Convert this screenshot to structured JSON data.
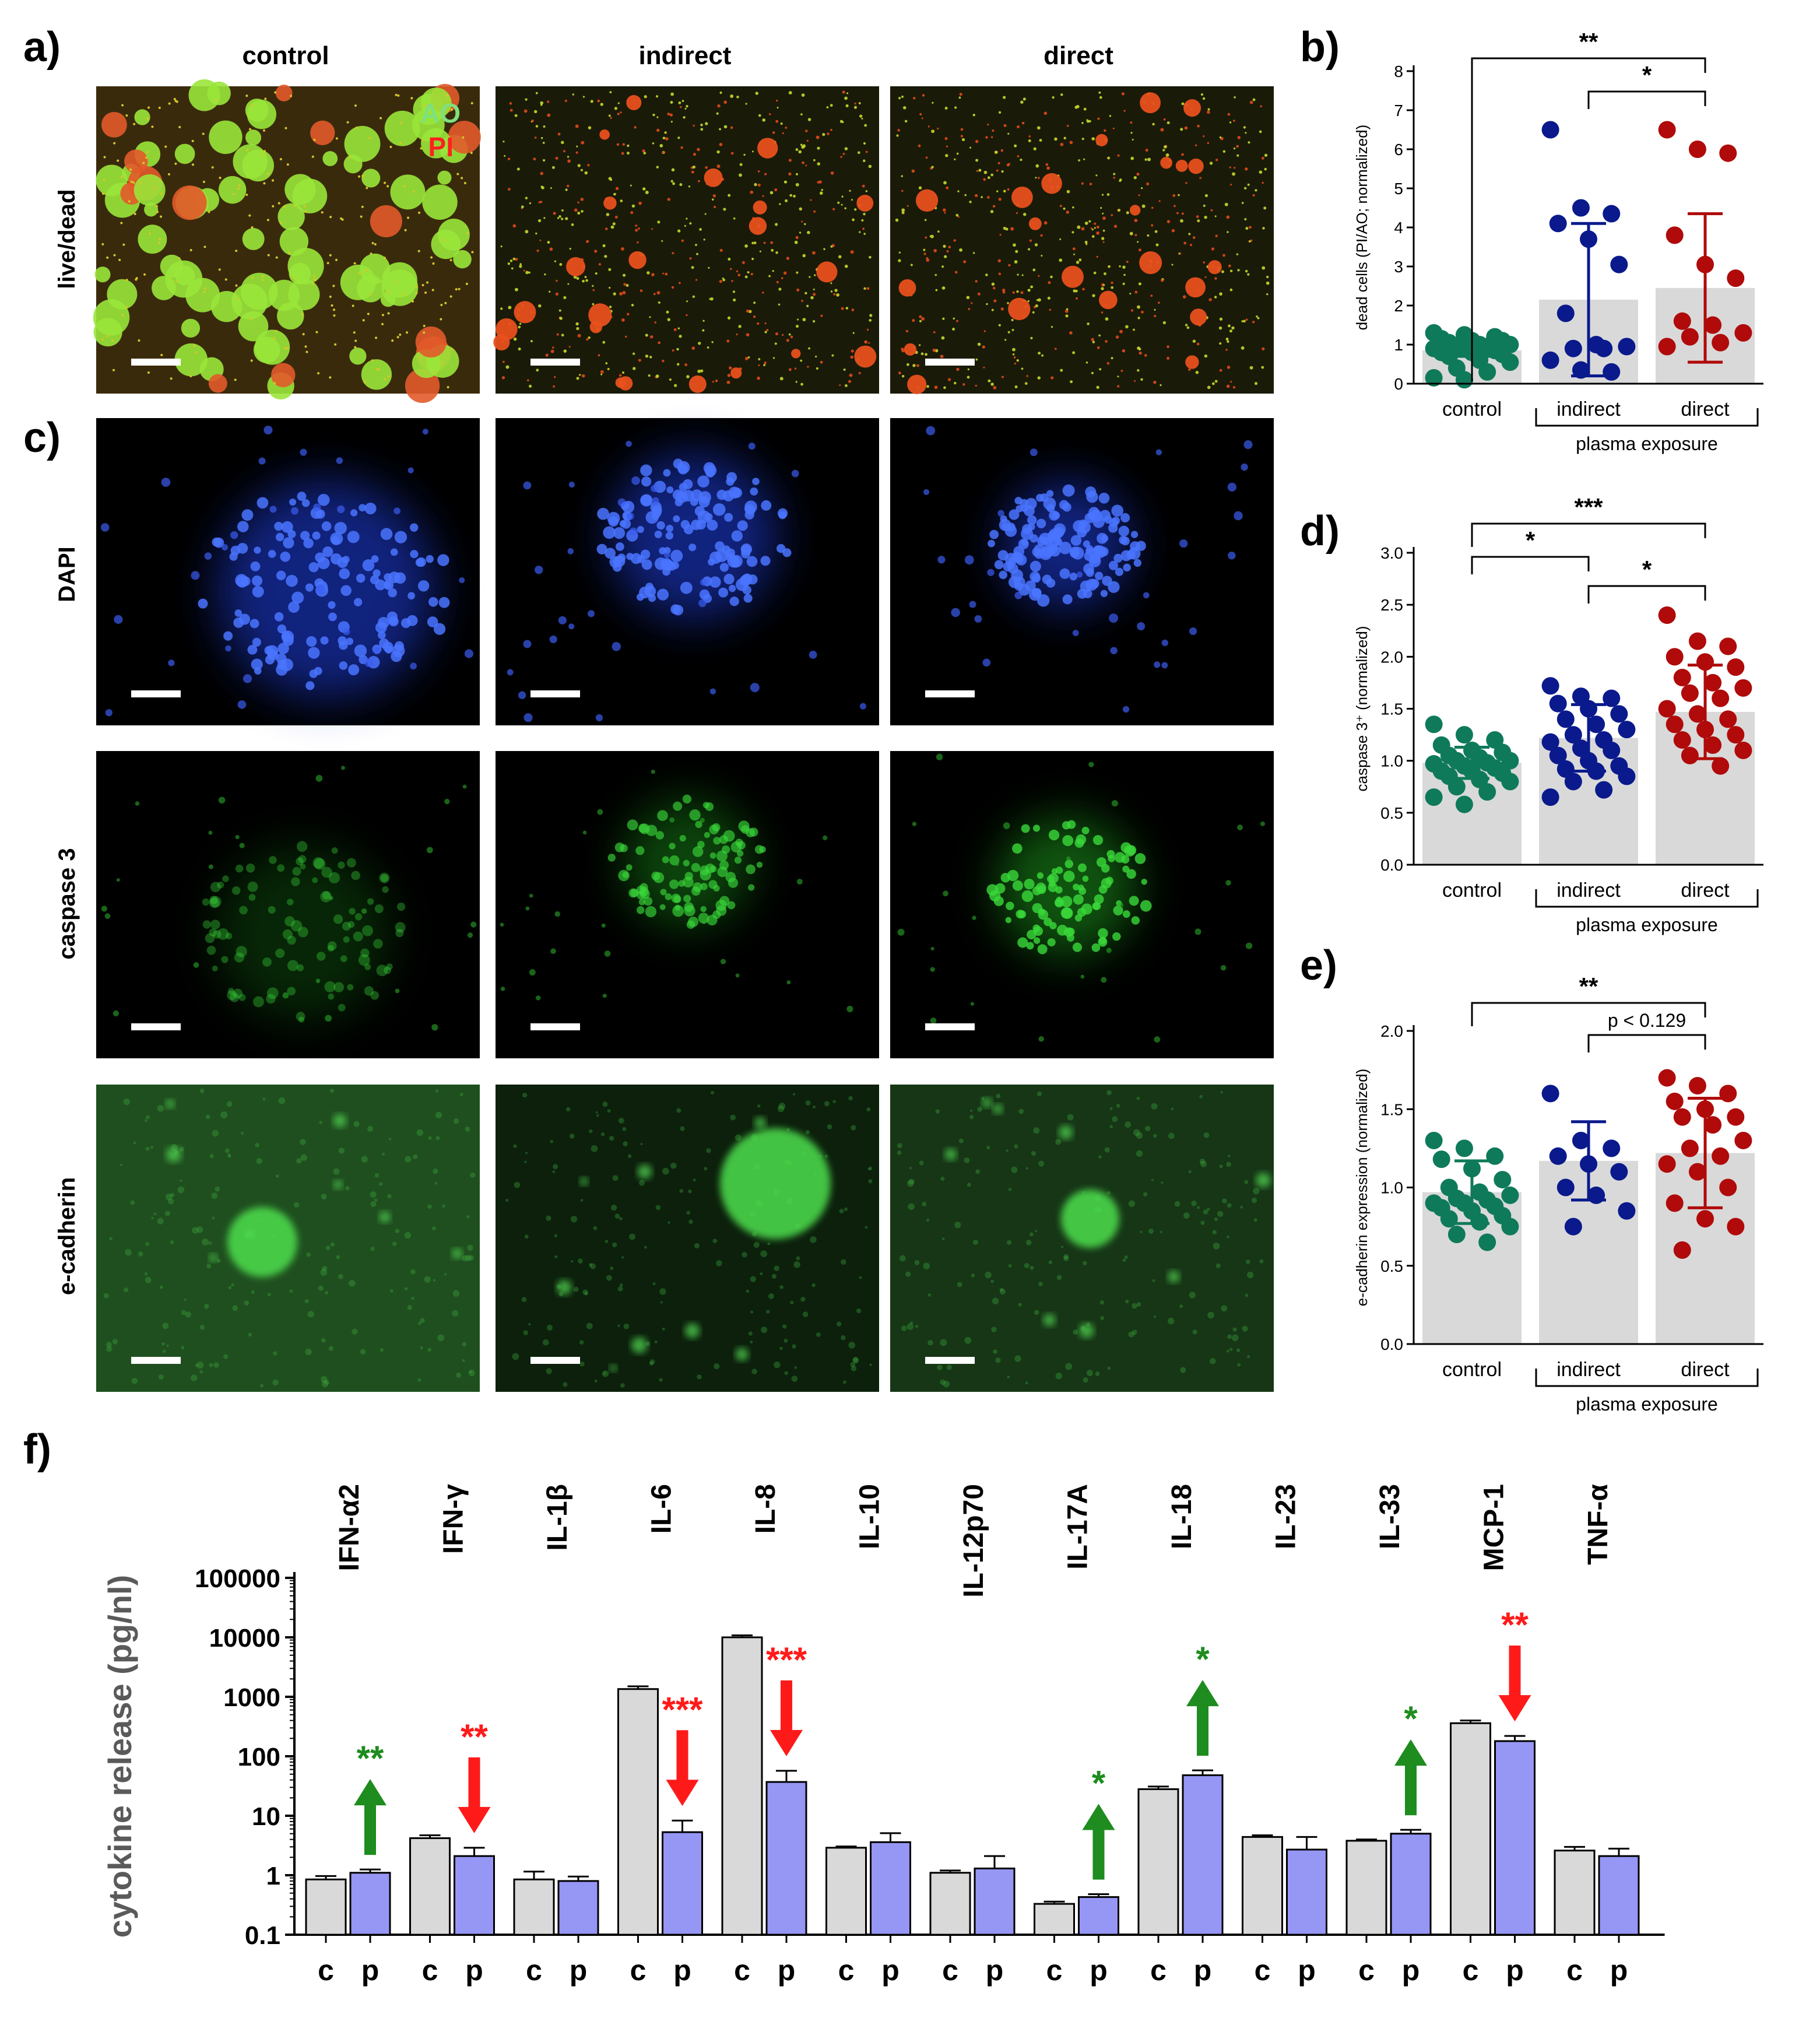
{
  "panel_labels": {
    "a": "a)",
    "b": "b)",
    "c": "c)",
    "d": "d)",
    "e": "e)",
    "f": "f)"
  },
  "column_headers": [
    "control",
    "indirect",
    "direct"
  ],
  "row_labels": [
    "live/dead",
    "DAPI",
    "caspase 3",
    "e-cadherin"
  ],
  "stain_labels": {
    "ao": "AO",
    "pi": "PI"
  },
  "colors": {
    "control": "#0f7a5a",
    "indirect": "#0a1a8c",
    "direct": "#b00a0a",
    "bar": "#d9d9d9",
    "blue_bar": "#9696f5",
    "red_mark": "#ff1a1a",
    "green_mark": "#1e8c1e"
  },
  "chart_data": [
    {
      "id": "b",
      "type": "bar-scatter",
      "ylabel": "dead cells (PI/AO; normalized)",
      "ylim": [
        0,
        8
      ],
      "yticks": [
        0,
        1,
        2,
        3,
        4,
        5,
        6,
        7,
        8
      ],
      "categories": [
        "control",
        "indirect",
        "direct"
      ],
      "group_label": "plasma exposure",
      "means": [
        0.85,
        2.15,
        2.45
      ],
      "sd": [
        0.15,
        1.95,
        1.9
      ],
      "points": [
        [
          1.3,
          1.25,
          1.2,
          1.15,
          1.1,
          1.1,
          1.05,
          1.0,
          1.0,
          0.95,
          0.95,
          0.9,
          0.9,
          0.85,
          0.8,
          0.8,
          0.75,
          0.7,
          0.6,
          0.55,
          0.4,
          0.3,
          0.15,
          0.1
        ],
        [
          6.5,
          4.5,
          4.35,
          4.1,
          3.7,
          3.05,
          1.8,
          1.0,
          0.95,
          0.9,
          0.9,
          0.6,
          0.35,
          0.3
        ],
        [
          6.5,
          6.0,
          5.9,
          3.8,
          3.05,
          2.7,
          1.6,
          1.5,
          1.3,
          1.2,
          1.05,
          0.95
        ]
      ],
      "significance": [
        {
          "from": 0,
          "to": 2,
          "label": "**"
        },
        {
          "from": 1,
          "to": 2,
          "label": "*"
        }
      ]
    },
    {
      "id": "d",
      "type": "bar-scatter",
      "ylabel": "caspase 3⁺ (normalized)",
      "ylim": [
        0,
        3
      ],
      "yticks": [
        "0.0",
        "0.5",
        "1.0",
        "1.5",
        "2.0",
        "2.5",
        "3.0"
      ],
      "categories": [
        "control",
        "indirect",
        "direct"
      ],
      "group_label": "plasma exposure",
      "means": [
        0.98,
        1.22,
        1.47
      ],
      "sd": [
        0.15,
        0.32,
        0.45
      ],
      "points": [
        [
          1.35,
          1.25,
          1.2,
          1.15,
          1.1,
          1.08,
          1.05,
          1.03,
          1.0,
          1.0,
          0.98,
          0.97,
          0.95,
          0.93,
          0.9,
          0.9,
          0.88,
          0.85,
          0.82,
          0.8,
          0.75,
          0.7,
          0.65,
          0.58
        ],
        [
          1.72,
          1.62,
          1.6,
          1.55,
          1.5,
          1.45,
          1.4,
          1.35,
          1.3,
          1.25,
          1.2,
          1.18,
          1.12,
          1.1,
          1.05,
          1.0,
          0.95,
          0.92,
          0.9,
          0.85,
          0.8,
          0.72,
          0.65
        ],
        [
          2.4,
          2.15,
          2.1,
          2.0,
          1.95,
          1.9,
          1.8,
          1.75,
          1.7,
          1.65,
          1.6,
          1.5,
          1.45,
          1.4,
          1.35,
          1.3,
          1.25,
          1.2,
          1.15,
          1.1,
          1.05,
          0.95
        ]
      ],
      "significance": [
        {
          "from": 0,
          "to": 2,
          "label": "***"
        },
        {
          "from": 0,
          "to": 1,
          "label": "*"
        },
        {
          "from": 1,
          "to": 2,
          "label": "*"
        }
      ]
    },
    {
      "id": "e",
      "type": "bar-scatter",
      "ylabel": "e-cadherin expression (normalized)",
      "ylim": [
        0,
        2
      ],
      "yticks": [
        "0.0",
        "0.5",
        "1.0",
        "1.5",
        "2.0"
      ],
      "categories": [
        "control",
        "indirect",
        "direct"
      ],
      "group_label": "plasma exposure",
      "means": [
        0.97,
        1.17,
        1.22
      ],
      "sd": [
        0.2,
        0.25,
        0.35
      ],
      "points": [
        [
          1.3,
          1.25,
          1.2,
          1.18,
          1.12,
          1.05,
          1.0,
          0.97,
          0.95,
          0.93,
          0.92,
          0.9,
          0.9,
          0.88,
          0.87,
          0.85,
          0.82,
          0.8,
          0.78,
          0.75,
          0.7,
          0.65
        ],
        [
          1.6,
          1.3,
          1.25,
          1.2,
          1.15,
          1.1,
          1.0,
          0.95,
          0.85,
          0.75
        ],
        [
          1.7,
          1.65,
          1.6,
          1.55,
          1.5,
          1.45,
          1.45,
          1.4,
          1.3,
          1.25,
          1.2,
          1.15,
          1.1,
          1.0,
          0.9,
          0.8,
          0.75,
          0.6
        ]
      ],
      "significance": [
        {
          "from": 0,
          "to": 2,
          "label": "**"
        },
        {
          "from": 1,
          "to": 2,
          "label": "p < 0.129"
        }
      ]
    },
    {
      "id": "f",
      "type": "bar",
      "log_scale": true,
      "ylabel": "cytokine release (pg/nl)",
      "ylim": [
        0.1,
        100000
      ],
      "yticks": [
        "0.1",
        "1",
        "10",
        "100",
        "1000",
        "10000",
        "100000"
      ],
      "categories": [
        "IFN-α2",
        "IFN-γ",
        "IL-1β",
        "IL-6",
        "IL-8",
        "IL-10",
        "IL-12p70",
        "IL-17A",
        "IL-18",
        "IL-23",
        "IL-33",
        "MCP-1",
        "TNF-α"
      ],
      "bar_labels": [
        "c",
        "p"
      ],
      "series": [
        {
          "values": [
            0.85,
            4.2,
            0.85,
            1350,
            10000,
            2.9,
            1.1,
            0.33,
            28,
            4.4,
            3.8,
            360,
            2.6
          ],
          "errors": [
            0.12,
            0.5,
            0.3,
            150,
            800,
            0.15,
            0.1,
            0.03,
            3,
            0.3,
            0.2,
            40,
            0.4
          ]
        },
        {
          "values": [
            1.1,
            2.1,
            0.8,
            5.3,
            37,
            3.6,
            1.3,
            0.43,
            48,
            2.7,
            5.0,
            180,
            2.1
          ],
          "errors": [
            0.15,
            0.8,
            0.15,
            3,
            20,
            1.5,
            0.8,
            0.05,
            10,
            1.7,
            0.8,
            40,
            0.7
          ]
        }
      ],
      "changes": [
        {
          "index": 0,
          "direction": "up",
          "label": "**"
        },
        {
          "index": 1,
          "direction": "down",
          "label": "**"
        },
        {
          "index": 3,
          "direction": "down",
          "label": "***"
        },
        {
          "index": 4,
          "direction": "down",
          "label": "***"
        },
        {
          "index": 7,
          "direction": "up",
          "label": "*"
        },
        {
          "index": 8,
          "direction": "up",
          "label": "*"
        },
        {
          "index": 10,
          "direction": "up",
          "label": "*"
        },
        {
          "index": 11,
          "direction": "down",
          "label": "**"
        }
      ]
    }
  ]
}
